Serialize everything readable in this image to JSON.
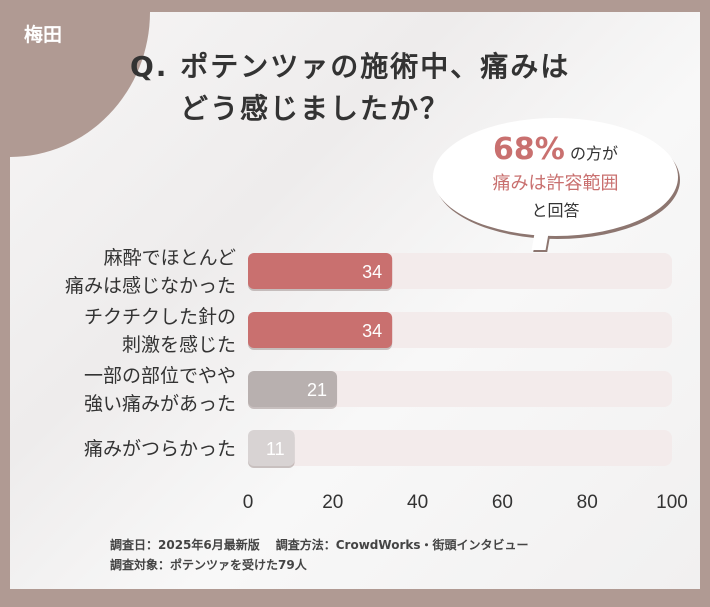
{
  "region": "梅田",
  "title": {
    "line1": "Q. ポテンツァの施術中、痛みは",
    "line2": "どう感じましたか？"
  },
  "callout": {
    "percent": "68%",
    "text1": "の方が",
    "highlight": "痛みは許容範囲",
    "text2": "と回答"
  },
  "chart_data": {
    "type": "bar",
    "orientation": "horizontal",
    "categories": [
      [
        "麻酔でほとんど",
        "痛みは感じなかった"
      ],
      [
        "チクチクした針の",
        "刺激を感じた"
      ],
      [
        "一部の部位でやや",
        "強い痛みがあった"
      ],
      [
        "痛みがつらかった"
      ]
    ],
    "values": [
      34,
      34,
      21,
      11
    ],
    "xlim": [
      0,
      100
    ],
    "xticks": [
      0,
      20,
      40,
      60,
      80,
      100
    ],
    "bar_colors": [
      "#c9706f",
      "#c9706f",
      "#b8b0af",
      "#d8d3d3"
    ],
    "track_color": "#f3ebeb",
    "grid": false
  },
  "footer": {
    "date": "調査日：2025年6月最新版",
    "method": "調査方法：CrowdWorks・街頭インタビュー",
    "target": "調査対象：ポテンツァを受けた79人"
  }
}
